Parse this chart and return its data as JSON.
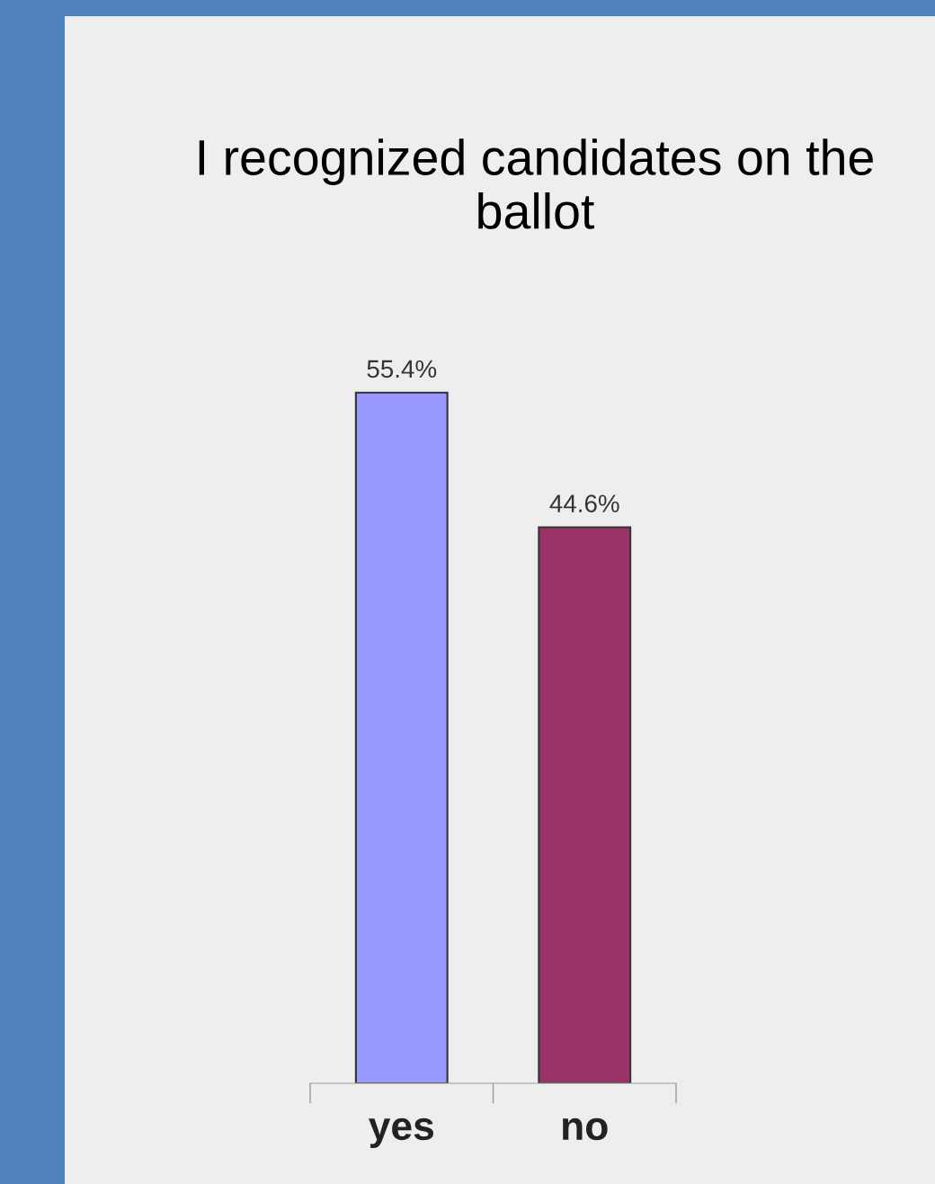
{
  "chart_data": {
    "type": "bar",
    "title": "I recognized candidates on the ballot",
    "categories": [
      "yes",
      "no"
    ],
    "values": [
      55.4,
      44.6
    ],
    "colors": [
      "#9999ff",
      "#993366"
    ],
    "value_labels": [
      "55.4%",
      "44.6%"
    ],
    "grid": false,
    "legend": false
  }
}
